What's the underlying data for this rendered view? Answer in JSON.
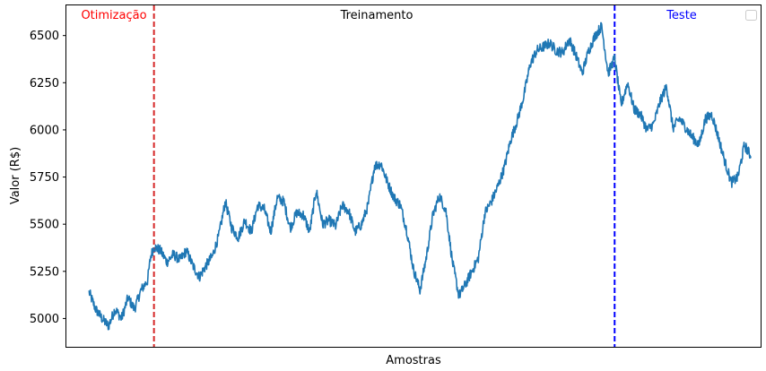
{
  "chart_data": {
    "type": "line",
    "title": "",
    "xlabel": "Amostras",
    "ylabel": "Valor (R$)",
    "xlim": [
      -35,
      1035
    ],
    "ylim": [
      4850,
      6660
    ],
    "yticks": [
      5000,
      5250,
      5500,
      5750,
      6000,
      6250,
      6500
    ],
    "xticks_shown": false,
    "grid": false,
    "legend": "top-right (empty)",
    "colors": {
      "series": "#1f77b4",
      "optimization_line": "#d62728",
      "test_line": "#0000ff",
      "optimization_label": "#ff0000",
      "test_label": "#0000ff",
      "training_label": "#000000"
    },
    "regions": [
      {
        "label": "Otimização",
        "color": "#ff0000"
      },
      {
        "label": "Treinamento",
        "color": "#000000"
      },
      {
        "label": "Teste",
        "color": "#0000ff"
      }
    ],
    "boundaries": [
      {
        "x": 100,
        "style": "dashed",
        "color": "#d62728"
      },
      {
        "x": 810,
        "style": "dashed",
        "color": "#0000ff"
      }
    ],
    "series": [
      {
        "x": [
          0,
          10,
          20,
          30,
          40,
          50,
          60,
          70,
          80,
          90,
          95,
          100,
          110,
          120,
          130,
          140,
          150,
          160,
          170,
          180,
          190,
          200,
          210,
          220,
          230,
          240,
          250,
          260,
          270,
          280,
          290,
          300,
          310,
          320,
          330,
          340,
          350,
          360,
          370,
          380,
          390,
          400,
          410,
          420,
          430,
          440,
          450,
          460,
          470,
          480,
          490,
          500,
          510,
          520,
          530,
          540,
          550,
          560,
          570,
          580,
          590,
          600,
          610,
          620,
          630,
          640,
          650,
          660,
          670,
          680,
          690,
          700,
          710,
          720,
          730,
          740,
          750,
          760,
          770,
          780,
          790,
          800,
          810,
          820,
          830,
          840,
          850,
          860,
          870,
          880,
          890,
          900,
          910,
          920,
          930,
          940,
          950,
          960,
          970,
          980,
          990,
          1000,
          1010,
          1020
        ],
        "values": [
          5140,
          5050,
          5000,
          4960,
          5050,
          5000,
          5110,
          5050,
          5150,
          5200,
          5330,
          5380,
          5360,
          5300,
          5340,
          5310,
          5360,
          5280,
          5220,
          5280,
          5330,
          5440,
          5620,
          5480,
          5430,
          5520,
          5460,
          5600,
          5580,
          5460,
          5640,
          5620,
          5480,
          5560,
          5550,
          5460,
          5680,
          5500,
          5520,
          5490,
          5600,
          5570,
          5460,
          5500,
          5600,
          5810,
          5820,
          5720,
          5640,
          5600,
          5460,
          5260,
          5150,
          5330,
          5550,
          5650,
          5570,
          5300,
          5120,
          5180,
          5250,
          5320,
          5560,
          5620,
          5700,
          5800,
          5950,
          6050,
          6180,
          6350,
          6420,
          6440,
          6460,
          6420,
          6410,
          6480,
          6400,
          6300,
          6420,
          6500,
          6550,
          6300,
          6380,
          6130,
          6250,
          6110,
          6080,
          6000,
          6030,
          6150,
          6230,
          6010,
          6060,
          6010,
          5960,
          5920,
          6060,
          6080,
          5960,
          5830,
          5720,
          5750,
          5920,
          5860
        ]
      }
    ]
  }
}
